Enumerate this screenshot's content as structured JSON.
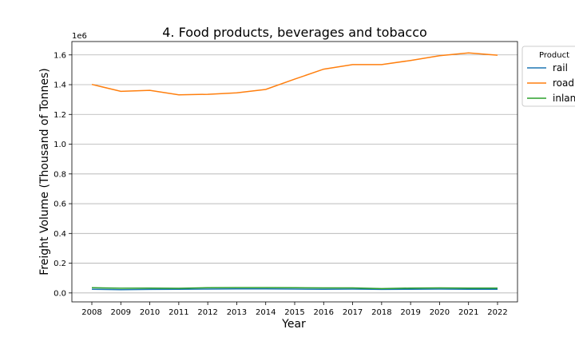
{
  "chart_data": {
    "type": "line",
    "title": "4. Food products, beverages and tobacco",
    "xlabel": "Year",
    "ylabel": "Freight Volume (Thousand of Tonnes)",
    "y_offset_label": "1e6",
    "y_tick_labels": [
      "0.0",
      "0.2",
      "0.4",
      "0.6",
      "0.8",
      "1.0",
      "1.2",
      "1.4",
      "1.6"
    ],
    "ylim": [
      -60000,
      1690000
    ],
    "grid": "horizontal",
    "legend": {
      "title": "Product",
      "placement": "top-right outside"
    },
    "x": [
      "2008",
      "2009",
      "2010",
      "2011",
      "2012",
      "2013",
      "2014",
      "2015",
      "2016",
      "2017",
      "2018",
      "2019",
      "2020",
      "2021",
      "2022"
    ],
    "series": [
      {
        "name": "rail",
        "color": "#1f77b4",
        "values": [
          25000,
          22000,
          24000,
          25000,
          26000,
          27000,
          27000,
          26000,
          25000,
          26000,
          24000,
          25000,
          26000,
          25000,
          25000
        ]
      },
      {
        "name": "road",
        "color": "#ff7f0e",
        "values": [
          1402000,
          1355000,
          1362000,
          1332000,
          1335000,
          1345000,
          1368000,
          1437000,
          1504000,
          1535000,
          1535000,
          1563000,
          1595000,
          1613000,
          1598000
        ]
      },
      {
        "name": "inland waterways",
        "color": "#2ca02c",
        "values": [
          35000,
          32000,
          33000,
          31000,
          35000,
          36000,
          36000,
          35000,
          34000,
          34000,
          29000,
          33000,
          34000,
          33000,
          33000
        ]
      }
    ]
  }
}
